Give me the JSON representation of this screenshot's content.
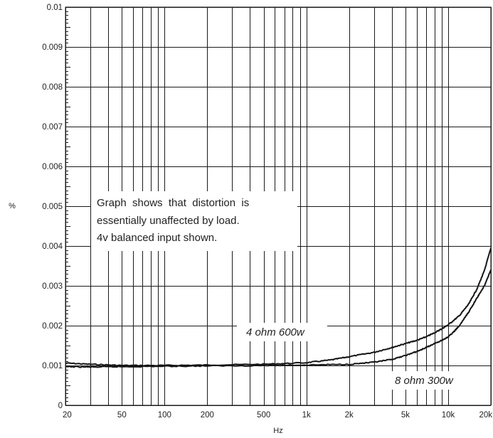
{
  "chart_data": {
    "type": "line",
    "title": "",
    "xlabel": "Hz",
    "ylabel": "%",
    "x_scale": "log",
    "xlim": [
      20,
      20000
    ],
    "ylim": [
      0,
      0.01
    ],
    "grid": true,
    "x_ticks": [
      {
        "value": 20,
        "label": "20"
      },
      {
        "value": 50,
        "label": "50"
      },
      {
        "value": 100,
        "label": "100"
      },
      {
        "value": 200,
        "label": "200"
      },
      {
        "value": 500,
        "label": "500"
      },
      {
        "value": 1000,
        "label": "1k"
      },
      {
        "value": 2000,
        "label": "2k"
      },
      {
        "value": 5000,
        "label": "5k"
      },
      {
        "value": 10000,
        "label": "10k"
      },
      {
        "value": 20000,
        "label": "20k"
      }
    ],
    "x_gridlines": [
      20,
      30,
      40,
      50,
      60,
      70,
      80,
      90,
      100,
      200,
      300,
      400,
      500,
      600,
      700,
      800,
      900,
      1000,
      2000,
      3000,
      4000,
      5000,
      6000,
      7000,
      8000,
      9000,
      10000,
      20000
    ],
    "y_ticks": [
      {
        "value": 0,
        "label": "0"
      },
      {
        "value": 0.001,
        "label": "0.001"
      },
      {
        "value": 0.002,
        "label": "0.002"
      },
      {
        "value": 0.003,
        "label": "0.003"
      },
      {
        "value": 0.004,
        "label": "0.004"
      },
      {
        "value": 0.005,
        "label": "0.005"
      },
      {
        "value": 0.006,
        "label": "0.006"
      },
      {
        "value": 0.007,
        "label": "0.007"
      },
      {
        "value": 0.008,
        "label": "0.008"
      },
      {
        "value": 0.009,
        "label": "0.009"
      },
      {
        "value": 0.01,
        "label": "0.01"
      }
    ],
    "series": [
      {
        "name": "4 ohm 600w",
        "x": [
          20,
          30,
          50,
          100,
          200,
          500,
          1000,
          1500,
          2000,
          3000,
          4000,
          5000,
          6000,
          7000,
          8000,
          9000,
          10000,
          12000,
          14000,
          16000,
          18000,
          20000
        ],
        "y": [
          0.00106,
          0.00103,
          0.001,
          0.001,
          0.00101,
          0.00103,
          0.00107,
          0.00114,
          0.00122,
          0.00133,
          0.00145,
          0.00155,
          0.00163,
          0.00172,
          0.00182,
          0.00192,
          0.00202,
          0.00225,
          0.00255,
          0.00293,
          0.00338,
          0.00395
        ]
      },
      {
        "name": "8 ohm 300w",
        "x": [
          20,
          30,
          50,
          100,
          200,
          500,
          1000,
          2000,
          3000,
          4000,
          5000,
          6000,
          7000,
          8000,
          9000,
          10000,
          11000,
          12000,
          14000,
          16000,
          18000,
          20000
        ],
        "y": [
          0.00097,
          0.00096,
          0.00097,
          0.00098,
          0.00099,
          0.001,
          0.00101,
          0.00103,
          0.00108,
          0.00115,
          0.00125,
          0.00135,
          0.00145,
          0.00155,
          0.00163,
          0.00172,
          0.00185,
          0.002,
          0.00235,
          0.0027,
          0.003,
          0.0034
        ]
      }
    ],
    "annotations": [
      {
        "line1": "Graph  shows  that  distortion  is",
        "line2": "essentially unaffected by load.",
        "line3": "4v balanced input shown."
      }
    ]
  }
}
